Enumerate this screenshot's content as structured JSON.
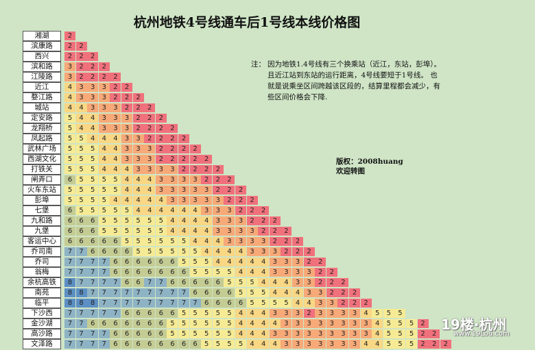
{
  "title": "杭州地铁4号线通车后1号线本线价格图",
  "note": {
    "label": "注：",
    "text": "因为地铁1.4号线有三个换乘站（近江，东站，彭埠）。且近江站到东站的运行距离，4号线要短于1号线。 也就是说乘坐区间跨越该区段的，结算里程都会减少，有些区间价格会下降."
  },
  "copyright": {
    "line1": "版权：2008huang",
    "line2": "欢迎转图"
  },
  "watermark": {
    "brand": "19楼·杭州",
    "url": "www.19Lou.com"
  },
  "colors": {
    "2": "#f0717c",
    "3": "#f7a978",
    "4": "#f9d784",
    "5": "#f6eb94",
    "6": "#c4cc94",
    "7": "#8eb3c5",
    "8": "#5c8fc4"
  },
  "stations": [
    "湘湖",
    "滨康路",
    "西兴",
    "滨和路",
    "江陵路",
    "近江",
    "婺江路",
    "城站",
    "定安路",
    "龙翔桥",
    "凤起路",
    "武林广场",
    "西湖文化",
    "打铁关",
    "闸弄口",
    "火车东站",
    "彭埠",
    "七堡",
    "九和路",
    "九堡",
    "客运中心",
    "乔司南",
    "乔司",
    "翁梅",
    "余杭高铁",
    "南苑",
    "临平",
    "下沙西",
    "金沙湖",
    "高沙路",
    "文泽路"
  ],
  "fares": [
    [
      2
    ],
    [
      2,
      2
    ],
    [
      2,
      2,
      2
    ],
    [
      3,
      2,
      2,
      2
    ],
    [
      3,
      2,
      2,
      2,
      2
    ],
    [
      4,
      3,
      3,
      3,
      2,
      2
    ],
    [
      4,
      3,
      3,
      3,
      2,
      2,
      2
    ],
    [
      4,
      4,
      3,
      3,
      3,
      2,
      2,
      2
    ],
    [
      5,
      4,
      4,
      3,
      3,
      3,
      2,
      2,
      2
    ],
    [
      5,
      4,
      4,
      3,
      3,
      3,
      2,
      2,
      2,
      2
    ],
    [
      5,
      5,
      4,
      4,
      4,
      3,
      3,
      2,
      2,
      2,
      2
    ],
    [
      5,
      5,
      5,
      4,
      4,
      3,
      3,
      3,
      2,
      2,
      2,
      2
    ],
    [
      5,
      5,
      5,
      4,
      4,
      3,
      3,
      3,
      2,
      2,
      2,
      2,
      2
    ],
    [
      5,
      5,
      5,
      4,
      4,
      4,
      3,
      3,
      3,
      3,
      2,
      2,
      2,
      2
    ],
    [
      6,
      5,
      5,
      5,
      5,
      4,
      4,
      4,
      3,
      3,
      3,
      3,
      2,
      2,
      2
    ],
    [
      5,
      5,
      5,
      5,
      5,
      4,
      4,
      4,
      3,
      3,
      3,
      3,
      3,
      2,
      2,
      2
    ],
    [
      5,
      5,
      5,
      5,
      4,
      4,
      4,
      4,
      4,
      3,
      3,
      3,
      3,
      3,
      2,
      2,
      2
    ],
    [
      6,
      5,
      5,
      5,
      5,
      5,
      4,
      4,
      4,
      4,
      4,
      4,
      3,
      3,
      3,
      2,
      2,
      2
    ],
    [
      6,
      6,
      6,
      5,
      5,
      5,
      5,
      5,
      5,
      4,
      4,
      4,
      4,
      3,
      3,
      3,
      2,
      2,
      2
    ],
    [
      6,
      6,
      6,
      5,
      5,
      5,
      5,
      5,
      5,
      4,
      4,
      4,
      4,
      3,
      3,
      3,
      3,
      2,
      2,
      2
    ],
    [
      6,
      6,
      6,
      6,
      6,
      5,
      5,
      5,
      5,
      5,
      5,
      4,
      4,
      4,
      3,
      3,
      3,
      3,
      2,
      2,
      2
    ],
    [
      7,
      7,
      6,
      6,
      6,
      6,
      5,
      5,
      5,
      5,
      5,
      5,
      4,
      4,
      4,
      4,
      3,
      3,
      3,
      2,
      2,
      2
    ],
    [
      7,
      7,
      7,
      7,
      6,
      6,
      6,
      6,
      6,
      6,
      5,
      5,
      5,
      4,
      4,
      4,
      4,
      4,
      3,
      3,
      3,
      2,
      2
    ],
    [
      7,
      7,
      7,
      7,
      6,
      6,
      6,
      6,
      6,
      6,
      6,
      5,
      5,
      5,
      5,
      4,
      4,
      4,
      3,
      3,
      3,
      3,
      2,
      2
    ],
    [
      8,
      7,
      7,
      7,
      7,
      6,
      6,
      7,
      7,
      6,
      6,
      6,
      6,
      6,
      5,
      5,
      5,
      4,
      4,
      4,
      3,
      3,
      2,
      2,
      2
    ],
    [
      8,
      8,
      7,
      7,
      7,
      7,
      7,
      7,
      7,
      7,
      7,
      6,
      6,
      6,
      6,
      5,
      5,
      5,
      4,
      4,
      4,
      3,
      3,
      2,
      2,
      2
    ],
    [
      8,
      8,
      8,
      7,
      7,
      7,
      7,
      7,
      7,
      7,
      7,
      7,
      6,
      6,
      6,
      6,
      5,
      5,
      5,
      5,
      4,
      4,
      3,
      3,
      2,
      2,
      2
    ],
    [
      7,
      7,
      7,
      7,
      7,
      6,
      6,
      6,
      6,
      6,
      5,
      5,
      5,
      5,
      5,
      4,
      4,
      4,
      3,
      3,
      3,
      2,
      3,
      3,
      3,
      3,
      4,
      5,
      5,
      5
    ],
    [
      7,
      7,
      6,
      6,
      6,
      6,
      6,
      6,
      6,
      5,
      5,
      5,
      5,
      5,
      5,
      4,
      4,
      4,
      4,
      3,
      3,
      3,
      3,
      3,
      3,
      3,
      3,
      4,
      5,
      5,
      5,
      2
    ],
    [
      7,
      7,
      7,
      7,
      6,
      6,
      6,
      6,
      6,
      5,
      5,
      5,
      5,
      5,
      5,
      4,
      4,
      4,
      3,
      3,
      3,
      3,
      3,
      3,
      3,
      3,
      3,
      4,
      5,
      5,
      5,
      2,
      2
    ],
    [
      7,
      7,
      7,
      7,
      6,
      6,
      6,
      6,
      6,
      6,
      6,
      6,
      5,
      5,
      5,
      5,
      4,
      4,
      4,
      3,
      3,
      3,
      3,
      3,
      3,
      3,
      4,
      4,
      5,
      5,
      5,
      2,
      2,
      2
    ]
  ]
}
